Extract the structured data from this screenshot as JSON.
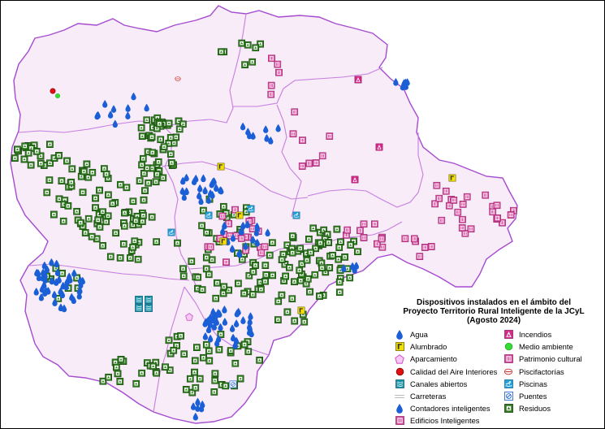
{
  "legend": {
    "title_lines": [
      "Dispositivos instalados en el ámbito del",
      "Proyecto Territorio Rural Inteligente de la JCyL",
      "(Agosto 2024)"
    ],
    "left": [
      {
        "key": "agua",
        "label": "Agua",
        "icon": "water-drop-icon"
      },
      {
        "key": "alumbrado",
        "label": "Alumbrado",
        "icon": "streetlight-icon"
      },
      {
        "key": "aparcamiento",
        "label": "Aparcamiento",
        "icon": "parking-pentagon-icon"
      },
      {
        "key": "calidad",
        "label": "Calidad del Aire Interiores",
        "icon": "air-quality-dot-icon"
      },
      {
        "key": "canales",
        "label": "Canales abiertos",
        "icon": "canal-icon"
      },
      {
        "key": "carreteras",
        "label": "Carreteras",
        "icon": "road-icon"
      },
      {
        "key": "contadores",
        "label": "Contadores inteligentes",
        "icon": "smart-meter-icon"
      },
      {
        "key": "edificios",
        "label": "Edificios Inteligentes",
        "icon": "smart-building-icon"
      }
    ],
    "right": [
      {
        "key": "incendios",
        "label": "Incendios",
        "icon": "fire-icon"
      },
      {
        "key": "medio",
        "label": "Medio ambiente",
        "icon": "environment-dot-icon"
      },
      {
        "key": "patrimonio",
        "label": "Patrimonio cultural",
        "icon": "heritage-icon"
      },
      {
        "key": "piscifactorias",
        "label": "Piscifactorías",
        "icon": "fish-farm-icon"
      },
      {
        "key": "piscinas",
        "label": "Piscinas",
        "icon": "pool-icon"
      },
      {
        "key": "puentes",
        "label": "Puentes",
        "icon": "bridge-icon"
      },
      {
        "key": "residuos",
        "label": "Residuos",
        "icon": "waste-icon"
      }
    ]
  },
  "colors": {
    "region_fill": "#f7ecf7",
    "region_border": "#a64bd0",
    "province_border": "#c77ee0",
    "water": "#1a5fd6",
    "waste_fill": "#2f7d1f",
    "heritage": "#d4479a",
    "fire": "#d42a8a",
    "streetlight": "#f3e000",
    "pool": "#21a0dc",
    "canal": "#0f8fa8",
    "parking": "#d25ad0",
    "air_quality": "#e01010",
    "environment": "#33dd33",
    "road": "#bbbbbb",
    "fish_farm": "#d13030"
  }
}
